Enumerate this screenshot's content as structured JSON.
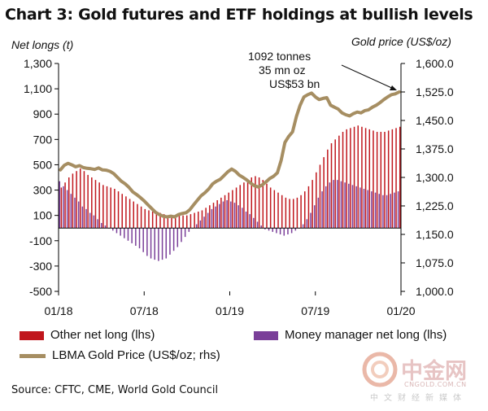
{
  "page": {
    "title": "Chart 3: Gold futures and ETF holdings at bullish levels",
    "source": "Source: CFTC, CME, World Gold Council",
    "watermark": {
      "name": "中金网",
      "domain": "CNGOLD.COM.CN",
      "tagline": "中文财经新媒体"
    }
  },
  "chart_data": {
    "type": "bar",
    "title": "Chart 3: Gold futures and ETF holdings at bullish levels",
    "ylabel": "Net longs (t)",
    "y2label": "Gold price (US$/oz)",
    "ylim": [
      -500,
      1300
    ],
    "y2lim": [
      1000,
      1600
    ],
    "yticks": [
      "1,300",
      "1,100",
      "900",
      "700",
      "500",
      "300",
      "100",
      "-100",
      "-300",
      "-500"
    ],
    "y2ticks": [
      "1,600.0",
      "1,525.0",
      "1,450.0",
      "1,375.0",
      "1,300.0",
      "1,225.0",
      "1,150.0",
      "1,075.0",
      "1,000.0"
    ],
    "xticks": [
      "01/18",
      "07/18",
      "01/19",
      "07/19",
      "01/20"
    ],
    "annotation": [
      "1092 tonnes",
      "35 mn oz",
      "US$53 bn"
    ],
    "legend": [
      "Other net long (lhs)",
      "Money manager net long (lhs)",
      "LBMA Gold Price (US$/oz; rhs)"
    ],
    "colors": {
      "other": "#c0161c",
      "money_manager": "#7a3f99",
      "gold": "#a68e62",
      "axis": "#000000"
    },
    "series": [
      {
        "name": "Other net long (lhs)",
        "type": "bar",
        "values": [
          320,
          360,
          400,
          430,
          450,
          470,
          450,
          420,
          400,
          380,
          360,
          340,
          330,
          320,
          310,
          290,
          270,
          250,
          230,
          210,
          190,
          170,
          150,
          140,
          130,
          130,
          120,
          110,
          100,
          100,
          100,
          100,
          100,
          100,
          110,
          120,
          130,
          140,
          160,
          180,
          200,
          220,
          240,
          260,
          280,
          300,
          320,
          340,
          360,
          380,
          400,
          410,
          400,
          380,
          350,
          320,
          300,
          280,
          260,
          240,
          230,
          230,
          240,
          260,
          290,
          330,
          380,
          440,
          500,
          560,
          620,
          670,
          700,
          730,
          760,
          780,
          790,
          800,
          810,
          800,
          790,
          780,
          770,
          760,
          760,
          760,
          770,
          780,
          790,
          800
        ]
      },
      {
        "name": "Money manager net long (lhs)",
        "type": "bar",
        "values": [
          370,
          330,
          300,
          270,
          240,
          210,
          170,
          150,
          120,
          100,
          70,
          40,
          20,
          0,
          -20,
          -40,
          -60,
          -80,
          -100,
          -120,
          -140,
          -160,
          -190,
          -220,
          -240,
          -250,
          -260,
          -250,
          -240,
          -210,
          -180,
          -150,
          -110,
          -70,
          -30,
          0,
          30,
          60,
          90,
          120,
          150,
          170,
          190,
          210,
          220,
          210,
          200,
          180,
          160,
          130,
          110,
          80,
          50,
          20,
          -10,
          -20,
          -30,
          -40,
          -50,
          -60,
          -50,
          -40,
          -20,
          0,
          30,
          70,
          120,
          180,
          240,
          290,
          330,
          360,
          380,
          380,
          370,
          360,
          350,
          340,
          330,
          320,
          310,
          300,
          290,
          280,
          270,
          260,
          260,
          270,
          280,
          290
        ]
      },
      {
        "name": "LBMA Gold Price (US$/oz; rhs)",
        "type": "line",
        "values": [
          1320,
          1332,
          1337,
          1333,
          1328,
          1331,
          1326,
          1324,
          1323,
          1321,
          1325,
          1320,
          1319,
          1316,
          1310,
          1300,
          1290,
          1283,
          1274,
          1262,
          1255,
          1247,
          1238,
          1228,
          1218,
          1208,
          1202,
          1198,
          1196,
          1198,
          1196,
          1202,
          1205,
          1207,
          1215,
          1228,
          1240,
          1252,
          1260,
          1270,
          1283,
          1290,
          1295,
          1305,
          1315,
          1322,
          1316,
          1306,
          1300,
          1293,
          1285,
          1278,
          1275,
          1280,
          1288,
          1297,
          1303,
          1312,
          1345,
          1392,
          1408,
          1420,
          1460,
          1490,
          1512,
          1518,
          1522,
          1512,
          1505,
          1508,
          1510,
          1490,
          1485,
          1480,
          1470,
          1465,
          1462,
          1468,
          1472,
          1470,
          1476,
          1478,
          1485,
          1490,
          1497,
          1505,
          1512,
          1518,
          1520,
          1525
        ]
      }
    ]
  }
}
